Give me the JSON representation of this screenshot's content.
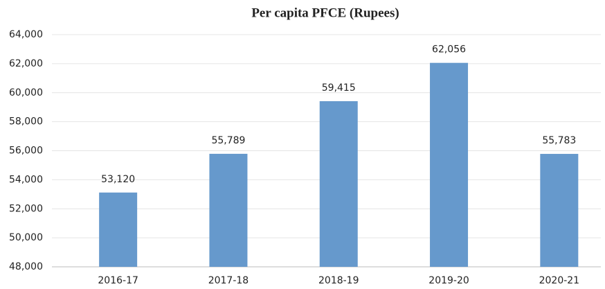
{
  "chart_data": {
    "type": "bar",
    "title": "Per capita PFCE (Rupees)",
    "categories": [
      "2016-17",
      "2017-18",
      "2018-19",
      "2019-20",
      "2020-21"
    ],
    "values": [
      53120,
      55789,
      59415,
      62056,
      55783
    ],
    "value_labels": [
      "53,120",
      "55,789",
      "59,415",
      "62,056",
      "55,783"
    ],
    "color": "#6699cc",
    "ylim": [
      48000,
      64000
    ],
    "yticks": [
      {
        "value": 48000,
        "label": "48,000"
      },
      {
        "value": 50000,
        "label": "50,000"
      },
      {
        "value": 52000,
        "label": "52,000"
      },
      {
        "value": 54000,
        "label": "54,000"
      },
      {
        "value": 56000,
        "label": "56,000"
      },
      {
        "value": 58000,
        "label": "58,000"
      },
      {
        "value": 60000,
        "label": "60,000"
      },
      {
        "value": 62000,
        "label": "62,000"
      },
      {
        "value": 64000,
        "label": "64,000"
      }
    ],
    "grid": true
  }
}
